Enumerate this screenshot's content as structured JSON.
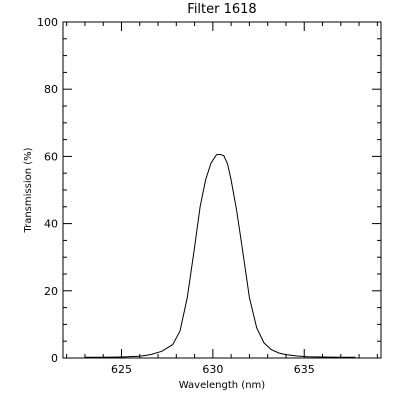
{
  "chart_data": {
    "type": "line",
    "title": "Filter 1618",
    "xlabel": "Wavelength (nm)",
    "ylabel": "Transmission (%)",
    "xlim": [
      621.8,
      639.2
    ],
    "ylim": [
      0,
      100
    ],
    "grid": false,
    "x_ticks": [
      625,
      630,
      635
    ],
    "x_tick_labels": [
      "625",
      "630",
      "635"
    ],
    "x_minor_step": 1,
    "y_ticks": [
      0,
      20,
      40,
      60,
      80,
      100
    ],
    "y_tick_labels": [
      "0",
      "20",
      "40",
      "60",
      "80",
      "100"
    ],
    "y_minor_step": 5,
    "series": [
      {
        "color": "#000000",
        "x": [
          623.0,
          624.0,
          625.0,
          626.0,
          626.6,
          627.2,
          627.8,
          628.2,
          628.6,
          629.0,
          629.3,
          629.6,
          629.9,
          630.2,
          630.4,
          630.6,
          630.8,
          631.0,
          631.3,
          631.6,
          632.0,
          632.4,
          632.8,
          633.2,
          633.6,
          634.0,
          634.6,
          635.2,
          636.0,
          637.0,
          637.8
        ],
        "y": [
          0.2,
          0.2,
          0.3,
          0.5,
          1.0,
          2.0,
          4.0,
          8.0,
          18.0,
          33.0,
          45.0,
          53.0,
          58.0,
          60.5,
          60.6,
          60.2,
          57.8,
          53.0,
          44.0,
          33.0,
          18.0,
          9.0,
          4.5,
          2.5,
          1.5,
          1.0,
          0.6,
          0.4,
          0.3,
          0.2,
          0.2
        ]
      }
    ]
  }
}
